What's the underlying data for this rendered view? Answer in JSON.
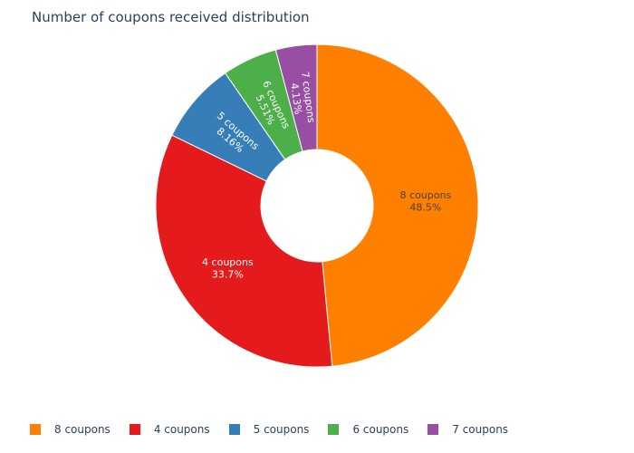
{
  "chart_data": {
    "type": "pie",
    "hole": true,
    "title": "Number of coupons received distribution",
    "categories": [
      "8 coupons",
      "4 coupons",
      "5 coupons",
      "6 coupons",
      "7 coupons"
    ],
    "values": [
      48.5,
      33.7,
      8.16,
      5.51,
      4.13
    ],
    "value_labels": [
      "48.5%",
      "33.7%",
      "8.16%",
      "5.51%",
      "4.13%"
    ],
    "colors": [
      "#ff7f00",
      "#e41a1c",
      "#377eb8",
      "#4daf4a",
      "#984ea3"
    ],
    "legend_position": "bottom-left"
  }
}
